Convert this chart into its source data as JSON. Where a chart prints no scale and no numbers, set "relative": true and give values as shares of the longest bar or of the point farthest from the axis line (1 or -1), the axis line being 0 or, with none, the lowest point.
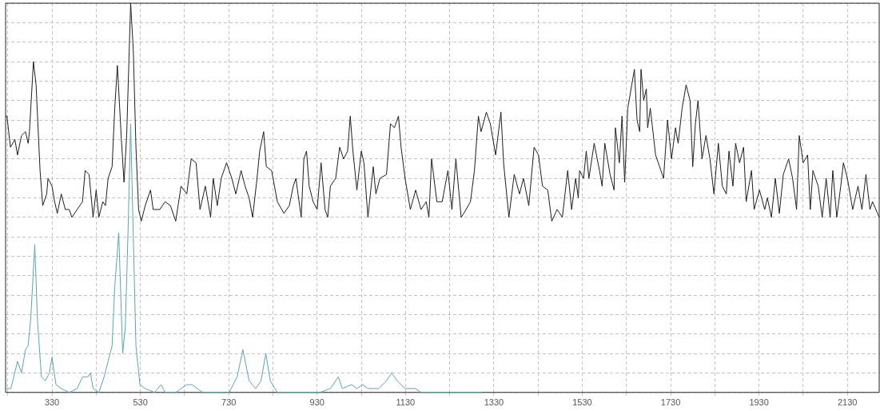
{
  "chart_data": {
    "type": "line",
    "relative": true,
    "grid": true,
    "marker": "none",
    "line_style": "solid",
    "xlim": [
      225,
      2202
    ],
    "xticks": [
      {
        "value": 230,
        "label": null
      },
      330,
      {
        "value": 430,
        "label": null
      },
      530,
      {
        "value": 630,
        "label": null
      },
      730,
      {
        "value": 830,
        "label": null
      },
      930,
      {
        "value": 1030,
        "label": null
      },
      1130,
      {
        "value": 1230,
        "label": null
      },
      1330,
      {
        "value": 1430,
        "label": null
      },
      1530,
      {
        "value": 1630,
        "label": null
      },
      1730,
      {
        "value": 1830,
        "label": null
      },
      1930,
      {
        "value": 2030,
        "label": null
      },
      2130
    ],
    "series": [
      {
        "color": "#1e1e1e",
        "x": [
          225,
          228,
          236,
          246,
          252,
          261,
          270,
          276,
          279,
          288,
          294,
          303,
          309,
          318,
          321,
          330,
          336,
          342,
          351,
          360,
          369,
          375,
          387,
          399,
          405,
          414,
          423,
          430,
          436,
          445,
          451,
          457,
          466,
          472,
          478,
          487,
          493,
          499,
          508,
          514,
          520,
          526,
          532,
          541,
          553,
          559,
          574,
          586,
          598,
          610,
          622,
          635,
          645,
          656,
          665,
          677,
          689,
          695,
          704,
          713,
          725,
          737,
          746,
          758,
          767,
          776,
          784,
          794,
          800,
          809,
          815,
          827,
          840,
          855,
          867,
          876,
          882,
          894,
          900,
          906,
          912,
          921,
          930,
          939,
          948,
          954,
          960,
          972,
          981,
          990,
          999,
          1005,
          1011,
          1020,
          1030,
          1036,
          1045,
          1057,
          1063,
          1072,
          1087,
          1096,
          1105,
          1114,
          1120,
          1129,
          1141,
          1153,
          1165,
          1177,
          1183,
          1189,
          1201,
          1213,
          1226,
          1235,
          1244,
          1256,
          1262,
          1277,
          1286,
          1295,
          1301,
          1313,
          1322,
          1334,
          1346,
          1352,
          1364,
          1376,
          1388,
          1397,
          1409,
          1421,
          1431,
          1440,
          1452,
          1461,
          1473,
          1485,
          1497,
          1506,
          1515,
          1521,
          1524,
          1533,
          1539,
          1545,
          1557,
          1569,
          1575,
          1581,
          1593,
          1602,
          1605,
          1614,
          1620,
          1626,
          1633,
          1642,
          1648,
          1654,
          1660,
          1663,
          1669,
          1675,
          1678,
          1684,
          1696,
          1708,
          1714,
          1723,
          1732,
          1741,
          1747,
          1756,
          1765,
          1774,
          1780,
          1786,
          1792,
          1801,
          1810,
          1819,
          1828,
          1838,
          1847,
          1856,
          1862,
          1871,
          1877,
          1886,
          1895,
          1901,
          1913,
          1919,
          1931,
          1943,
          1949,
          1958,
          1967,
          1976,
          1985,
          1997,
          2006,
          2015,
          2021,
          2030,
          2040,
          2046,
          2052,
          2064,
          2073,
          2082,
          2091,
          2097,
          2106,
          2115,
          2121,
          2130,
          2142,
          2154,
          2163,
          2172,
          2181,
          2187,
          2202
        ],
        "values": [
          0.71,
          0.71,
          0.63,
          0.65,
          0.61,
          0.66,
          0.67,
          0.64,
          0.67,
          0.85,
          0.79,
          0.57,
          0.48,
          0.51,
          0.55,
          0.53,
          0.49,
          0.46,
          0.51,
          0.47,
          0.47,
          0.45,
          0.47,
          0.49,
          0.57,
          0.56,
          0.45,
          0.52,
          0.45,
          0.49,
          0.48,
          0.55,
          0.58,
          0.73,
          0.84,
          0.65,
          0.54,
          0.66,
          1,
          0.88,
          0.63,
          0.47,
          0.44,
          0.48,
          0.52,
          0.47,
          0.47,
          0.49,
          0.48,
          0.44,
          0.53,
          0.51,
          0.6,
          0.59,
          0.47,
          0.53,
          0.45,
          0.55,
          0.48,
          0.55,
          0.59,
          0.55,
          0.51,
          0.57,
          0.53,
          0.5,
          0.45,
          0.55,
          0.62,
          0.67,
          0.58,
          0.57,
          0.49,
          0.46,
          0.48,
          0.53,
          0.55,
          0.45,
          0.6,
          0.62,
          0.53,
          0.49,
          0.47,
          0.59,
          0.47,
          0.45,
          0.53,
          0.55,
          0.63,
          0.6,
          0.62,
          0.71,
          0.62,
          0.52,
          0.62,
          0.59,
          0.45,
          0.58,
          0.51,
          0.55,
          0.56,
          0.69,
          0.68,
          0.71,
          0.63,
          0.55,
          0.47,
          0.52,
          0.47,
          0.49,
          0.45,
          0.6,
          0.49,
          0.49,
          0.57,
          0.47,
          0.6,
          0.45,
          0.46,
          0.49,
          0.57,
          0.71,
          0.67,
          0.72,
          0.69,
          0.61,
          0.72,
          0.59,
          0.45,
          0.56,
          0.51,
          0.55,
          0.48,
          0.63,
          0.61,
          0.53,
          0.52,
          0.44,
          0.47,
          0.45,
          0.57,
          0.47,
          0.55,
          0.5,
          0.57,
          0.55,
          0.62,
          0.55,
          0.64,
          0.57,
          0.53,
          0.64,
          0.56,
          0.52,
          0.68,
          0.59,
          0.71,
          0.54,
          0.73,
          0.79,
          0.83,
          0.7,
          0.67,
          0.83,
          0.75,
          0.78,
          0.68,
          0.73,
          0.61,
          0.57,
          0.55,
          0.7,
          0.6,
          0.68,
          0.64,
          0.73,
          0.79,
          0.75,
          0.58,
          0.69,
          0.75,
          0.6,
          0.66,
          0.6,
          0.51,
          0.64,
          0.53,
          0.51,
          0.62,
          0.53,
          0.64,
          0.59,
          0.63,
          0.49,
          0.57,
          0.47,
          0.52,
          0.47,
          0.5,
          0.45,
          0.55,
          0.46,
          0.56,
          0.6,
          0.55,
          0.47,
          0.66,
          0.59,
          0.61,
          0.47,
          0.57,
          0.53,
          0.45,
          0.55,
          0.45,
          0.57,
          0.45,
          0.53,
          0.59,
          0.55,
          0.47,
          0.53,
          0.47,
          0.56,
          0.47,
          0.49,
          0.45
        ]
      },
      {
        "color": "#5aa5b8",
        "x": [
          225,
          237,
          252,
          261,
          270,
          276,
          282,
          291,
          297,
          306,
          315,
          324,
          330,
          339,
          351,
          369,
          387,
          399,
          411,
          417,
          423,
          436,
          448,
          457,
          466,
          472,
          481,
          490,
          496,
          502,
          508,
          514,
          520,
          529,
          541,
          562,
          577,
          586,
          610,
          635,
          647,
          659,
          671,
          731,
          749,
          762,
          776,
          791,
          803,
          814,
          824,
          840,
          936,
          960,
          978,
          987,
          1008,
          1020,
          1033,
          1045,
          1069,
          1087,
          1099,
          1111,
          1129,
          1153,
          1165,
          1304
        ],
        "values": [
          0.01,
          0.01,
          0.08,
          0.05,
          0.11,
          0.12,
          0.19,
          0.38,
          0.19,
          0.04,
          0.03,
          0.05,
          0.09,
          0.02,
          0.01,
          0,
          0.01,
          0.04,
          0.04,
          0.05,
          0.01,
          0,
          0.04,
          0.08,
          0.12,
          0.27,
          0.41,
          0.1,
          0.17,
          0.41,
          0.69,
          0.4,
          0.12,
          0.02,
          0.01,
          0,
          0.02,
          0,
          0,
          0.02,
          0.02,
          0.01,
          0,
          0,
          0.04,
          0.11,
          0.03,
          0.01,
          0.03,
          0.1,
          0.03,
          0,
          0,
          0.01,
          0.04,
          0.01,
          0.02,
          0.01,
          0.02,
          0.01,
          0.01,
          0.03,
          0.05,
          0.03,
          0.01,
          0.01,
          0,
          0
        ]
      }
    ]
  }
}
